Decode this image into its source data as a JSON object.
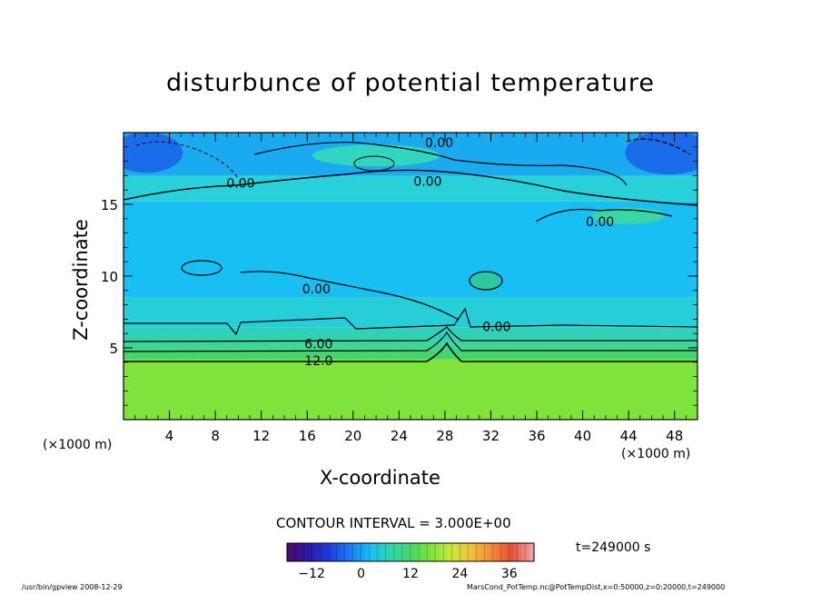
{
  "chart_data": {
    "type": "heatmap",
    "title": "disturbunce of potential temperature",
    "xlabel": "X-coordinate",
    "ylabel": "Z-coordinate",
    "x_unit_left": "(×1000 m)",
    "x_unit_right": "(×1000 m)",
    "xlim": [
      0,
      50
    ],
    "ylim": [
      0,
      20
    ],
    "x_ticks": [
      4,
      8,
      12,
      16,
      20,
      24,
      28,
      32,
      36,
      40,
      44,
      48
    ],
    "y_ticks": [
      5,
      10,
      15
    ],
    "contour_labels": [
      {
        "text": "0.00",
        "x": 27.5,
        "z": 19.3
      },
      {
        "text": "0.00",
        "x": 10.2,
        "z": 16.5
      },
      {
        "text": "0.00",
        "x": 26.5,
        "z": 16.6
      },
      {
        "text": "0.00",
        "x": 41.5,
        "z": 13.8
      },
      {
        "text": "0.00",
        "x": 16.8,
        "z": 9.1
      },
      {
        "text": "0.00",
        "x": 32.5,
        "z": 6.5
      },
      {
        "text": "6.00",
        "x": 17.0,
        "z": 5.3
      },
      {
        "text": "12.0",
        "x": 17.0,
        "z": 4.1
      }
    ],
    "layers": [
      {
        "z_range": [
          0,
          4.2
        ],
        "value": 16,
        "color": "#7fe33a"
      },
      {
        "z_range": [
          4.2,
          4.9
        ],
        "value": 12,
        "color": "#43d66e"
      },
      {
        "z_range": [
          4.9,
          5.6
        ],
        "value": 8,
        "color": "#3fd49a"
      },
      {
        "z_range": [
          5.6,
          6.4
        ],
        "value": 4,
        "color": "#31d0b8"
      },
      {
        "z_range": [
          6.4,
          8.5
        ],
        "value": 1,
        "color": "#26cfd8"
      },
      {
        "z_range": [
          8.5,
          15.2
        ],
        "value": 0,
        "color": "#18bff2"
      },
      {
        "z_range": [
          15.2,
          17.0
        ],
        "value": 1,
        "color": "#28d0da"
      },
      {
        "z_range": [
          17.0,
          20.0
        ],
        "value": 0,
        "color": "#1aaaf0"
      }
    ],
    "contour_interval_text": "CONTOUR INTERVAL = 3.000E+00",
    "time_text": "t=249000 s",
    "colorbar": {
      "ticks": [
        -12,
        0,
        12,
        24,
        36
      ],
      "range": [
        -18,
        42
      ],
      "colors": [
        "#4b0a6e",
        "#2a1aa8",
        "#1f3ee0",
        "#1a7cf2",
        "#18bff2",
        "#2fd6b0",
        "#46d86a",
        "#7fe33a",
        "#c8e83a",
        "#f2c23a",
        "#f28a3a",
        "#e8503a",
        "#f0a0a8"
      ]
    },
    "footer_left": "/usr/bin/gpview   2008-12-29",
    "footer_right": "MarsCond_PotTemp.nc@PotTempDist,x=0:50000,z=0:20000,t=249000"
  }
}
